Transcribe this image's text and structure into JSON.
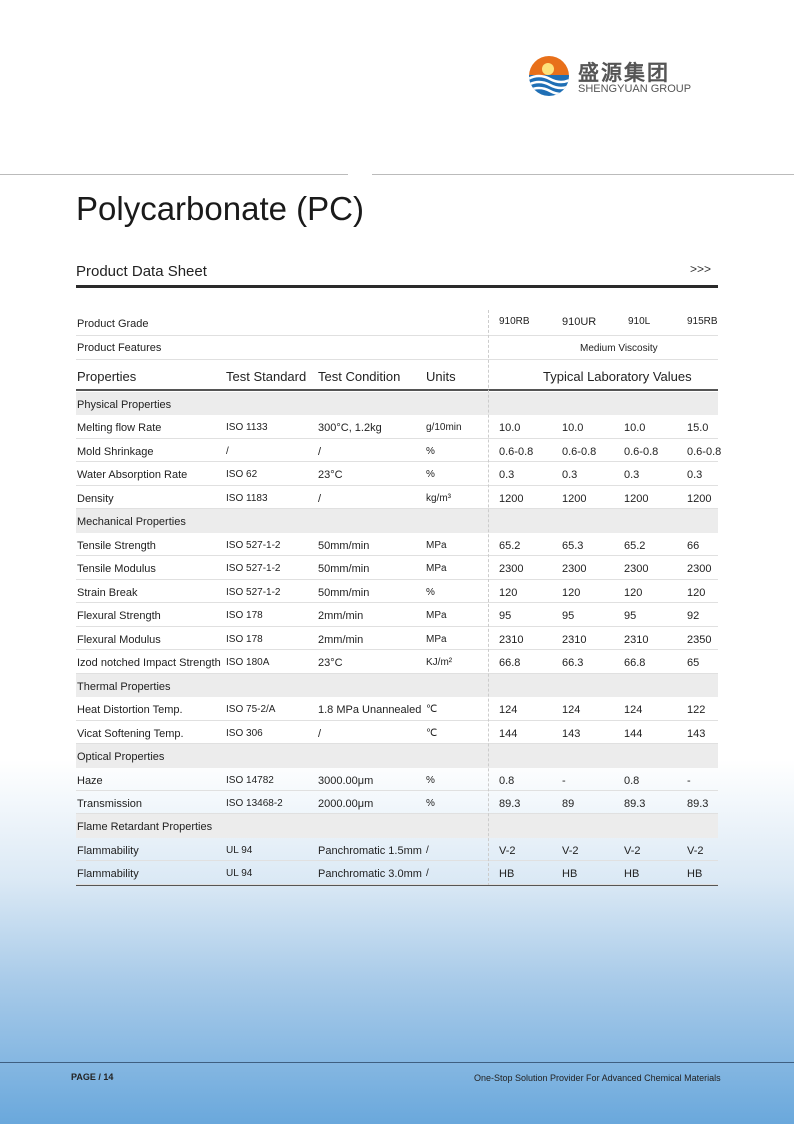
{
  "logo": {
    "zh": "盛源集团",
    "en": "SHENGYUAN GROUP"
  },
  "title": "Polycarbonate (PC)",
  "subtitle": "Product Data Sheet",
  "arrows": ">>>",
  "table": {
    "grade_label": "Product Grade",
    "grades": [
      "910RB",
      "910UR",
      "910L",
      "915RB"
    ],
    "features_label": "Product Features",
    "features": "Medium  Viscosity",
    "headers": [
      "Properties",
      "Test Standard",
      "Test Condition",
      "Units",
      "Typical Laboratory Values"
    ],
    "rows": [
      {
        "section": "Physical Properties"
      },
      {
        "cells": [
          "Melting flow Rate",
          "ISO 1133",
          "300°C, 1.2kg",
          "g/10min",
          "10.0",
          "10.0",
          "10.0",
          "15.0"
        ]
      },
      {
        "cells": [
          "Mold Shrinkage",
          "/",
          "/",
          "%",
          "0.6-0.8",
          "0.6-0.8",
          "0.6-0.8",
          "0.6-0.8"
        ]
      },
      {
        "cells": [
          "Water Absorption Rate",
          "ISO 62",
          "23°C",
          "%",
          "0.3",
          "0.3",
          "0.3",
          "0.3"
        ]
      },
      {
        "cells": [
          "Density",
          "ISO 1183",
          "/",
          "kg/m³",
          "1200",
          "1200",
          "1200",
          "1200"
        ]
      },
      {
        "section": "Mechanical Properties"
      },
      {
        "cells": [
          "Tensile Strength",
          "ISO 527-1-2",
          "50mm/min",
          "MPa",
          "65.2",
          "65.3",
          "65.2",
          "66"
        ]
      },
      {
        "cells": [
          "Tensile Modulus",
          "ISO 527-1-2",
          "50mm/min",
          "MPa",
          "2300",
          "2300",
          "2300",
          "2300"
        ]
      },
      {
        "cells": [
          "Strain Break",
          "ISO 527-1-2",
          "50mm/min",
          "%",
          "120",
          "120",
          "120",
          "120"
        ]
      },
      {
        "cells": [
          "Flexural Strength",
          "ISO 178",
          "2mm/min",
          "MPa",
          "95",
          "95",
          "95",
          "92"
        ]
      },
      {
        "cells": [
          "Flexural Modulus",
          "ISO 178",
          "2mm/min",
          "MPa",
          "2310",
          "2310",
          "2310",
          "2350"
        ]
      },
      {
        "cells": [
          "Izod notched Impact Strength",
          "ISO 180A",
          "23°C",
          "KJ/m²",
          "66.8",
          "66.3",
          "66.8",
          "65"
        ]
      },
      {
        "section": "Thermal Properties"
      },
      {
        "cells": [
          "Heat Distortion Temp.",
          "ISO 75-2/A",
          "1.8 MPa Unannealed",
          "℃",
          "124",
          "124",
          "124",
          "122"
        ]
      },
      {
        "cells": [
          "Vicat Softening Temp.",
          "ISO 306",
          "/",
          "℃",
          "144",
          "143",
          "144",
          "143"
        ]
      },
      {
        "section": "Optical Properties"
      },
      {
        "cells": [
          "Haze",
          "ISO 14782",
          "3000.00μm",
          "%",
          "0.8",
          "-",
          "0.8",
          "-"
        ]
      },
      {
        "cells": [
          "Transmission",
          "ISO 13468-2",
          "2000.00μm",
          "%",
          "89.3",
          "89",
          "89.3",
          "89.3"
        ]
      },
      {
        "section": "Flame Retardant Properties"
      },
      {
        "cells": [
          "Flammability",
          "UL 94",
          "Panchromatic 1.5mm",
          "/",
          "V-2",
          "V-2",
          "V-2",
          "V-2"
        ]
      },
      {
        "cells": [
          "Flammability",
          "UL 94",
          "Panchromatic 3.0mm",
          "/",
          "HB",
          "HB",
          "HB",
          "HB"
        ]
      }
    ]
  },
  "footer": {
    "page": "PAGE / 14",
    "tagline": "One-Stop Solution Provider For Advanced Chemical Materials"
  }
}
